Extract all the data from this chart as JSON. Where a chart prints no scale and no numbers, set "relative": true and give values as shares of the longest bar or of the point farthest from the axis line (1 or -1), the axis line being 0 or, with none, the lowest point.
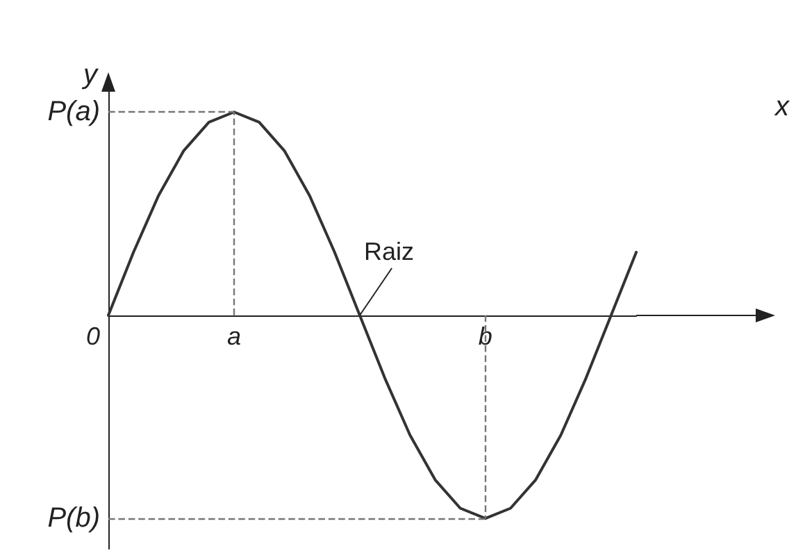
{
  "chart_data": {
    "type": "line",
    "relative": true,
    "xlabel": "x",
    "ylabel": "y",
    "categories": [
      "0",
      null,
      null,
      null,
      null,
      "a",
      null,
      null,
      null,
      null,
      null,
      null,
      null,
      null,
      null,
      "b",
      null,
      null,
      null,
      null,
      null,
      null
    ],
    "series": [
      {
        "color": "#333333",
        "values": [
          0,
          0.31,
          0.59,
          0.81,
          0.95,
          1,
          0.95,
          0.81,
          0.59,
          0.31,
          0,
          -0.31,
          -0.59,
          -0.81,
          -0.95,
          -1,
          -0.95,
          -0.81,
          -0.59,
          -0.31,
          0,
          0.31
        ]
      }
    ],
    "ref_lines": [
      {
        "axis": "y",
        "value": 1,
        "label": "P(a)",
        "line_style": "dashed",
        "color": "#777777"
      },
      {
        "axis": "y",
        "value": -1,
        "label": "P(b)",
        "line_style": "dashed",
        "color": "#777777"
      },
      {
        "axis": "x",
        "value": "a",
        "line_style": "dashed",
        "color": "#777777"
      },
      {
        "axis": "x",
        "value": "b",
        "line_style": "dashed",
        "color": "#777777"
      }
    ],
    "annotations": [
      "Raiz"
    ],
    "grid": false,
    "marker": "none",
    "line_style": "solid"
  }
}
